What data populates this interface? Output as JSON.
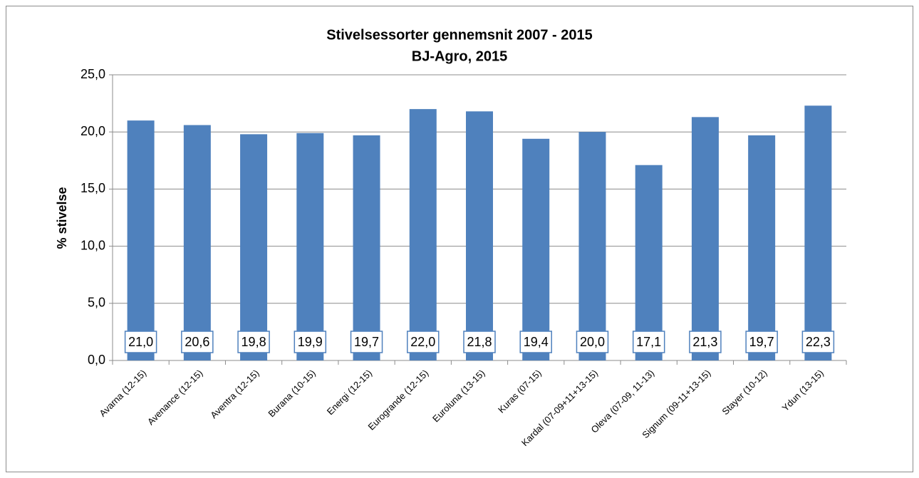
{
  "chart_data": {
    "type": "bar",
    "title": "Stivelsessorter gennemsnit 2007 - 2015",
    "subtitle": "BJ-Agro, 2015",
    "y_label": "% stivelse",
    "categories": [
      "Avarna (12-15)",
      "Avenance (12-15)",
      "Aventra (12-15)",
      "Burana (10-15)",
      "Energi (12-15)",
      "Eurogrande (12-15)",
      "Euroluna (13-15)",
      "Kuras (07-15)",
      "Kardal (07-09+11+13-15)",
      "Oleva (07-09, 11-13)",
      "Signum (09-11+13-15)",
      "Stayer (10-12)",
      "Ydun (13-15)"
    ],
    "values": [
      21.0,
      20.6,
      19.8,
      19.9,
      19.7,
      22.0,
      21.8,
      19.4,
      20.0,
      17.1,
      21.3,
      19.7,
      22.3
    ],
    "value_labels": [
      "21,0",
      "20,6",
      "19,8",
      "19,9",
      "19,7",
      "22,0",
      "21,8",
      "19,4",
      "20,0",
      "17,1",
      "21,3",
      "19,7",
      "22,3"
    ],
    "color": "#4f81bd",
    "ylim": [
      0,
      25
    ],
    "yticks": [
      {
        "value": 0,
        "label": "0,0"
      },
      {
        "value": 5,
        "label": "5,0"
      },
      {
        "value": 10,
        "label": "10,0"
      },
      {
        "value": 15,
        "label": "15,0"
      },
      {
        "value": 20,
        "label": "20,0"
      },
      {
        "value": 25,
        "label": "25,0"
      }
    ],
    "grid": true
  }
}
